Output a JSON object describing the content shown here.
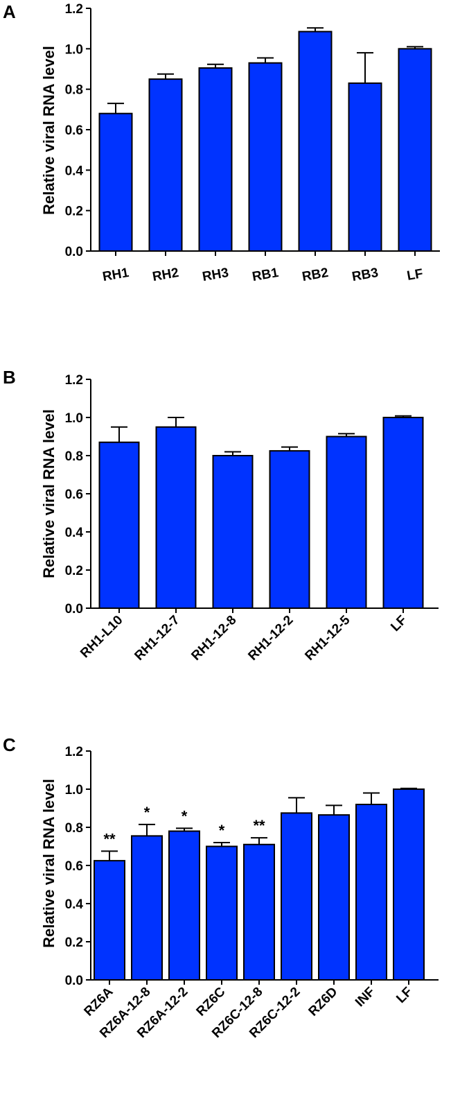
{
  "panels": [
    {
      "letter": "A",
      "ylabel": "Relative viral RNA level",
      "yticks": [
        "0.0",
        "0.2",
        "0.4",
        "0.6",
        "0.8",
        "1.0",
        "1.2"
      ]
    },
    {
      "letter": "B",
      "ylabel": "Relative viral RNA level",
      "yticks": [
        "0.0",
        "0.2",
        "0.4",
        "0.6",
        "0.8",
        "1.0",
        "1.2"
      ]
    },
    {
      "letter": "C",
      "ylabel": "Relative viral RNA level",
      "yticks": [
        "0.0",
        "0.2",
        "0.4",
        "0.6",
        "0.8",
        "1.0",
        "1.2"
      ]
    }
  ],
  "colors": {
    "bar": "#0033ff",
    "axis": "#000000"
  },
  "chart_data": [
    {
      "type": "bar",
      "panel": "A",
      "title": "",
      "xlabel": "",
      "ylabel": "Relative viral RNA level",
      "ylim": [
        0,
        1.2
      ],
      "categories": [
        "RH1",
        "RH2",
        "RH3",
        "RB1",
        "RB2",
        "RB3",
        "LF"
      ],
      "values": [
        0.68,
        0.85,
        0.905,
        0.93,
        1.085,
        0.83,
        1.0
      ],
      "errors": [
        0.05,
        0.025,
        0.018,
        0.025,
        0.018,
        0.15,
        0.01
      ],
      "annotations": [
        "",
        "",
        "",
        "",
        "",
        "",
        ""
      ],
      "grid": false
    },
    {
      "type": "bar",
      "panel": "B",
      "title": "",
      "xlabel": "",
      "ylabel": "Relative viral RNA level",
      "ylim": [
        0,
        1.2
      ],
      "categories": [
        "RH1-L10",
        "RH1-12-7",
        "RH1-12-8",
        "RH1-12-2",
        "RH1-12-5",
        "LF"
      ],
      "values": [
        0.87,
        0.95,
        0.8,
        0.825,
        0.9,
        1.0
      ],
      "errors": [
        0.08,
        0.05,
        0.02,
        0.02,
        0.015,
        0.008
      ],
      "annotations": [
        "",
        "",
        "",
        "",
        "",
        ""
      ],
      "grid": false
    },
    {
      "type": "bar",
      "panel": "C",
      "title": "",
      "xlabel": "",
      "ylabel": "Relative viral RNA level",
      "ylim": [
        0,
        1.2
      ],
      "categories": [
        "RZ6A",
        "RZ6A-12-8",
        "RZ6A-12-2",
        "RZ6C",
        "RZ6C-12-8",
        "RZ6C-12-2",
        "RZ6D",
        "INF",
        "LF"
      ],
      "values": [
        0.625,
        0.755,
        0.78,
        0.7,
        0.71,
        0.875,
        0.865,
        0.92,
        1.0
      ],
      "errors": [
        0.05,
        0.06,
        0.015,
        0.02,
        0.035,
        0.08,
        0.05,
        0.06,
        0.004
      ],
      "annotations": [
        "**",
        "*",
        "*",
        "*",
        "**",
        "",
        "",
        "",
        ""
      ],
      "grid": false
    }
  ]
}
